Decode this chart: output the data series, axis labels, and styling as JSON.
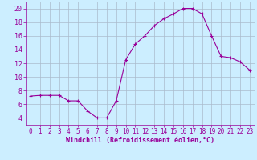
{
  "x": [
    0,
    1,
    2,
    3,
    4,
    5,
    6,
    7,
    8,
    9,
    10,
    11,
    12,
    13,
    14,
    15,
    16,
    17,
    18,
    19,
    20,
    21,
    22,
    23
  ],
  "y": [
    7.2,
    7.3,
    7.3,
    7.3,
    6.5,
    6.5,
    5.0,
    4.0,
    4.0,
    6.5,
    12.5,
    14.8,
    16.0,
    17.5,
    18.5,
    19.2,
    20.0,
    20.0,
    19.2,
    16.0,
    13.0,
    12.8,
    12.2,
    11.0
  ],
  "line_color": "#990099",
  "marker": "+",
  "bg_color": "#cceeff",
  "grid_color": "#aabbcc",
  "xlabel": "Windchill (Refroidissement éolien,°C)",
  "xlabel_color": "#990099",
  "tick_color": "#990099",
  "ylim": [
    3,
    21
  ],
  "yticks": [
    4,
    6,
    8,
    10,
    12,
    14,
    16,
    18,
    20
  ],
  "xlim": [
    -0.5,
    23.5
  ],
  "xticks": [
    0,
    1,
    2,
    3,
    4,
    5,
    6,
    7,
    8,
    9,
    10,
    11,
    12,
    13,
    14,
    15,
    16,
    17,
    18,
    19,
    20,
    21,
    22,
    23
  ],
  "tick_fontsize": 5.5,
  "xlabel_fontsize": 6.0
}
